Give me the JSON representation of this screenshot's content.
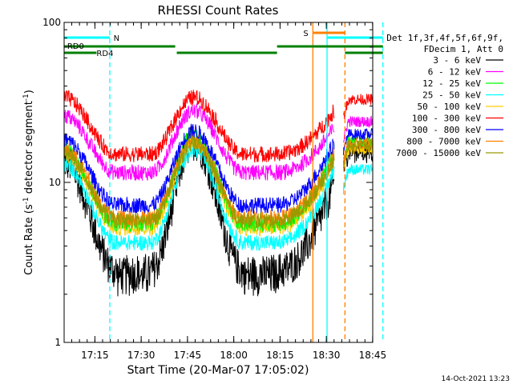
{
  "chart_data": {
    "type": "line",
    "title": "RHESSI Count Rates",
    "xlabel": "Start Time (20-Mar-07 17:05:02)",
    "ylabel_main": "Count Rate (s",
    "ylabel_sup1": "-1",
    "ylabel_mid": " detector segment",
    "ylabel_sup2": "-1",
    "ylabel_end": ")",
    "y_scale": "log",
    "ylim": [
      1,
      100
    ],
    "xlim": [
      "17:05:02",
      "18:45:02"
    ],
    "x_ticks": [
      "17:15",
      "17:30",
      "17:45",
      "18:00",
      "18:15",
      "18:30",
      "18:45"
    ],
    "x_tick_minutes": [
      15,
      30,
      45,
      60,
      75,
      90,
      105
    ],
    "y_ticks": [
      "1",
      "10",
      "100"
    ],
    "y_tick_values": [
      1,
      10,
      100
    ],
    "footer_timestamp": "14-Oct-2021 13:23",
    "legend_header": [
      "Det 1f,3f,4f,5f,6f,9f,",
      "FDecim 1, Att 0"
    ],
    "legend_placement": "right",
    "data_gap_minutes": [
      87.5,
      90.5
    ],
    "series": [
      {
        "name": "3 - 6 keV",
        "color": "#000000",
        "start": 13.5,
        "min": 2.8,
        "peak": 18,
        "end_pre": 10,
        "post": 16
      },
      {
        "name": "6 - 12 keV",
        "color": "#ff00ff",
        "start": 26,
        "min": 11.5,
        "peak": 28,
        "end_pre": 22,
        "post": 24
      },
      {
        "name": "12 - 25 keV",
        "color": "#00ff00",
        "start": 16,
        "min": 5.5,
        "peak": 20,
        "end_pre": 16,
        "post": 18
      },
      {
        "name": "25 - 50 keV",
        "color": "#00ffff",
        "start": 13,
        "min": 4.2,
        "peak": 16,
        "end_pre": 12,
        "post": 12
      },
      {
        "name": "50 - 100 keV",
        "color": "#ffcc00",
        "start": 15,
        "min": 5.2,
        "peak": 18,
        "end_pre": 14,
        "post": 16
      },
      {
        "name": "100 - 300 keV",
        "color": "#ff0000",
        "start": 34,
        "min": 15,
        "peak": 34,
        "end_pre": 28,
        "post": 33
      },
      {
        "name": "300 - 800 keV",
        "color": "#0000ff",
        "start": 18.5,
        "min": 7.2,
        "peak": 21,
        "end_pre": 18,
        "post": 20
      },
      {
        "name": "800 - 7000 keV",
        "color": "#ff8000",
        "start": 16,
        "min": 6.0,
        "peak": 18.5,
        "end_pre": 15,
        "post": 17.5
      },
      {
        "name": "7000 - 15000 keV",
        "color": "#999900",
        "start": 15,
        "min": 5.8,
        "peak": 17.5,
        "end_pre": 14,
        "post": 17
      }
    ],
    "vertical_lines": [
      {
        "minute": 14.8,
        "color": "#00ffff",
        "style": "dashed"
      },
      {
        "minute": 80.6,
        "color": "#ff8000",
        "style": "solid"
      },
      {
        "minute": 85.2,
        "color": "#00ffff",
        "style": "solid"
      },
      {
        "minute": 91.0,
        "color": "#ff8000",
        "style": "dashed"
      },
      {
        "minute": 103.3,
        "color": "#00ffff",
        "style": "dashed"
      }
    ],
    "flag_bars": [
      {
        "label": "N",
        "color": "#00ffff",
        "segments": [
          [
            0,
            14.8
          ],
          [
            85.2,
            103.3
          ]
        ],
        "level": 47
      },
      {
        "label": "S",
        "color": "#ff8000",
        "segments": [
          [
            80.6,
            91.0
          ]
        ],
        "level": 41
      },
      {
        "label": "RD0",
        "color": "#008000",
        "segments": [
          [
            0,
            36
          ],
          [
            69,
            103.3
          ]
        ],
        "level": 58
      },
      {
        "label": "RD4",
        "color": "#008000",
        "segments": [
          [
            0,
            10.5
          ],
          [
            36.5,
            69
          ],
          [
            91.0,
            103.3
          ]
        ],
        "level": 66
      }
    ]
  }
}
